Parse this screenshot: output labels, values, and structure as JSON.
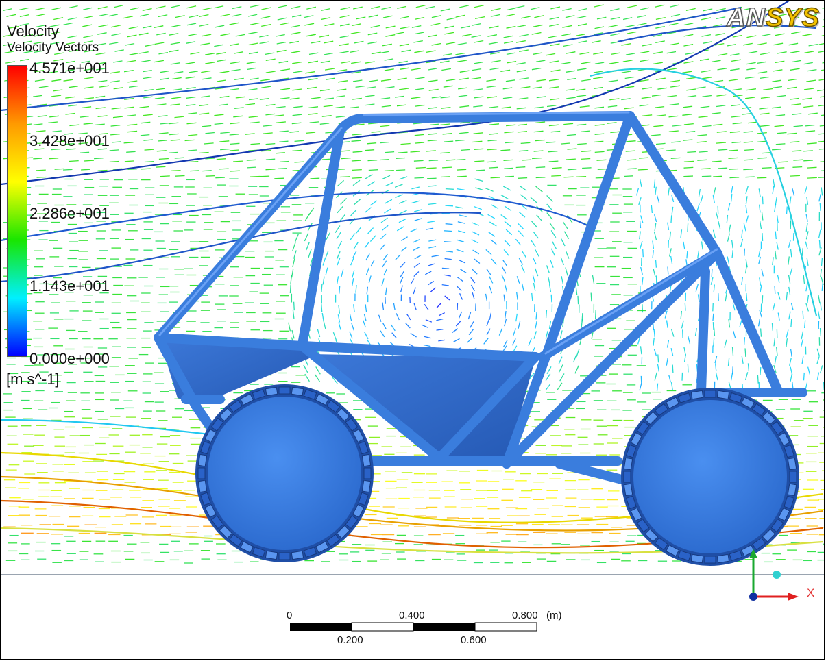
{
  "legend": {
    "title": "Velocity",
    "subtitle": "Velocity Vectors",
    "ticks": [
      "4.571e+001",
      "3.428e+001",
      "2.286e+001",
      "1.143e+001",
      "0.000e+000"
    ],
    "unit": "[m s^-1]",
    "colors": [
      "#ff0000",
      "#ff9a00",
      "#ffff00",
      "#19e600",
      "#00f0ff",
      "#0000ff"
    ]
  },
  "logo": {
    "part1": "AN",
    "part2": "SYS"
  },
  "scale_bar": {
    "top_labels": [
      "0",
      "0.400",
      "0.800"
    ],
    "bottom_labels": [
      "0.200",
      "0.600"
    ],
    "unit": "(m)"
  },
  "axis_triad": {
    "x_label": "X"
  },
  "colors": {
    "vehicle": "#3a7ddd",
    "vehicle_dark": "#2a5fb8",
    "ground_line": "#9aa4b0"
  }
}
